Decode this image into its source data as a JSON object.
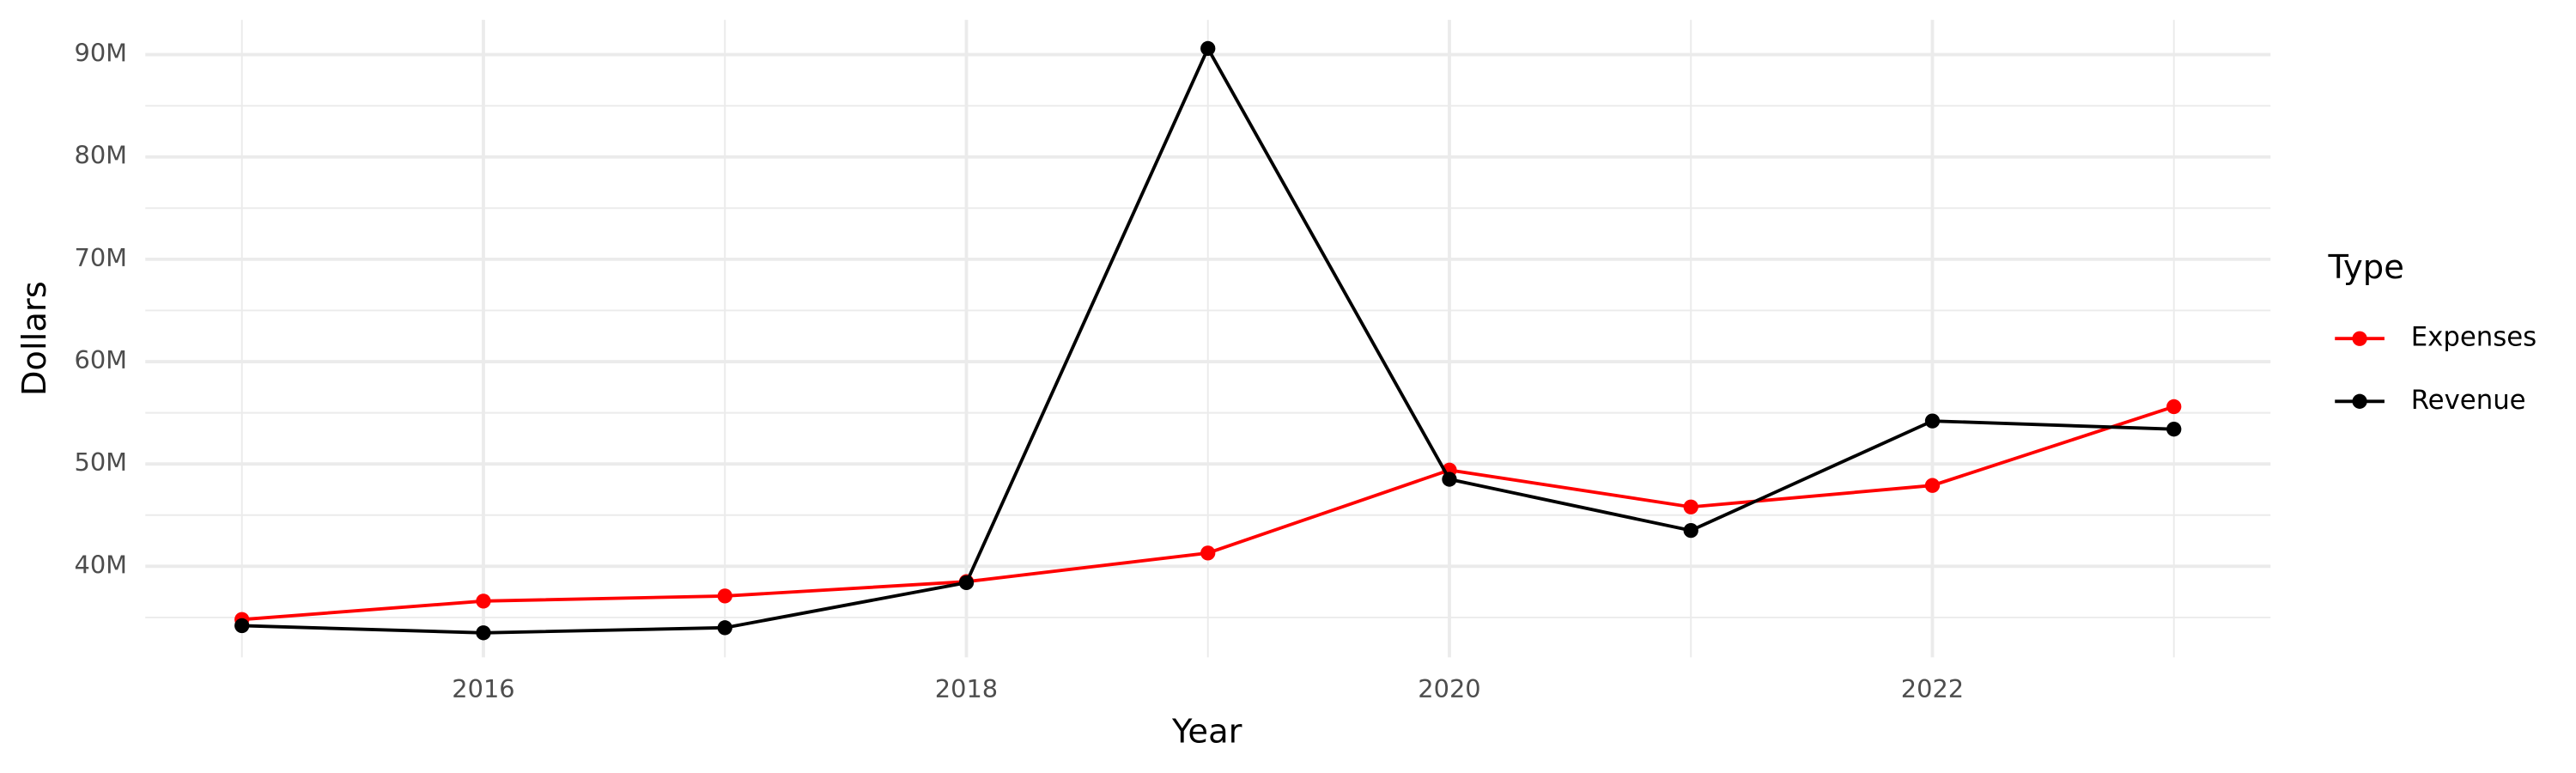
{
  "chart_data": {
    "type": "line",
    "x_label": "Year",
    "y_label": "Dollars",
    "legend_title": "Type",
    "legend": "right",
    "grid": true,
    "x": [
      2015,
      2016,
      2017,
      2018,
      2019,
      2020,
      2021,
      2022,
      2023
    ],
    "series": [
      {
        "name": "Expenses",
        "color": "#ff0000",
        "values": [
          34800000,
          36600000,
          37100000,
          38500000,
          41300000,
          49400000,
          45800000,
          47900000,
          55600000
        ]
      },
      {
        "name": "Revenue",
        "color": "#000000",
        "values": [
          34200000,
          33500000,
          34000000,
          38400000,
          90600000,
          48500000,
          43500000,
          54200000,
          53400000
        ]
      }
    ],
    "xlim": [
      2014.6,
      2023.4
    ],
    "xticks": [
      2016,
      2018,
      2020,
      2022
    ],
    "ylim": [
      31100000,
      93400000
    ],
    "yticks": [
      {
        "value": 40000000,
        "label": "40M"
      },
      {
        "value": 50000000,
        "label": "50M"
      },
      {
        "value": 60000000,
        "label": "60M"
      },
      {
        "value": 70000000,
        "label": "70M"
      },
      {
        "value": 80000000,
        "label": "80M"
      },
      {
        "value": 90000000,
        "label": "90M"
      }
    ]
  }
}
